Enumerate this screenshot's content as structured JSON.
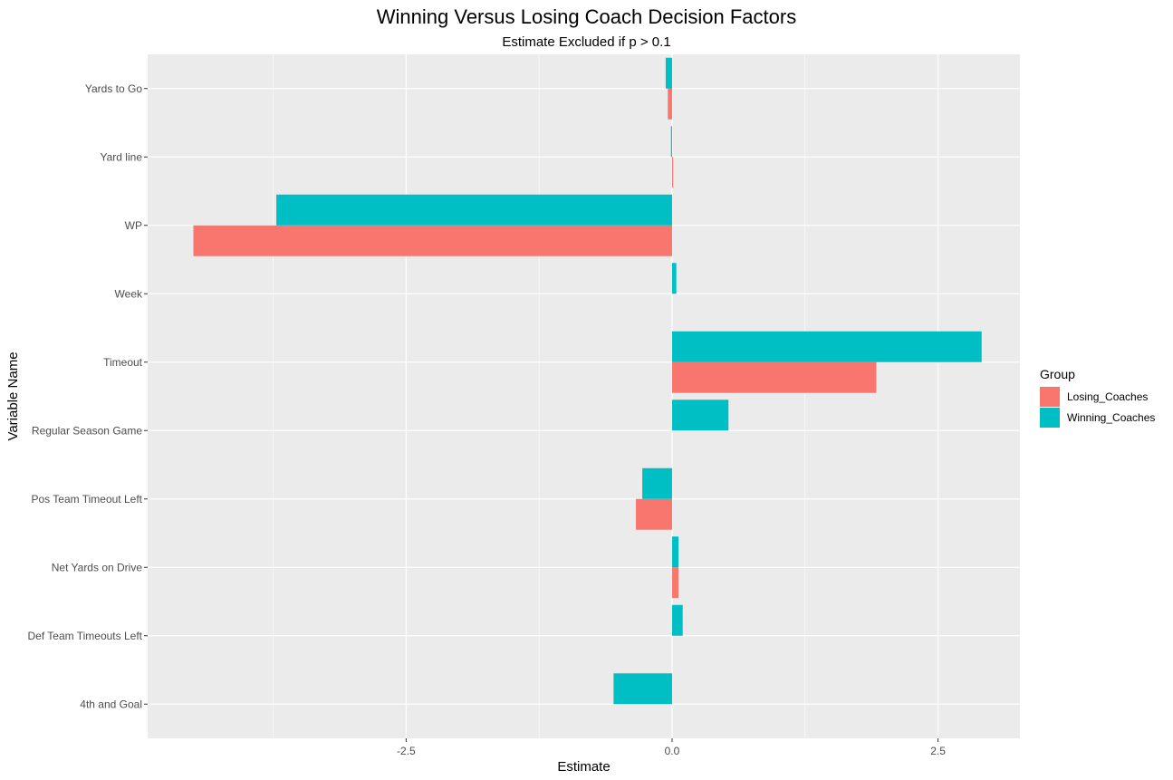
{
  "chart_data": {
    "type": "bar",
    "orientation": "horizontal",
    "title": "Winning Versus Losing Coach Decision Factors",
    "subtitle": "Estimate Excluded if p > 0.1",
    "xlabel": "Estimate",
    "ylabel": "Variable Name",
    "xlim": [
      -4.93,
      3.27
    ],
    "x_ticks": [
      -2.5,
      0.0,
      2.5
    ],
    "x_tick_labels": [
      "-2.5",
      "0.0",
      "2.5"
    ],
    "grid": true,
    "legend_position": "right",
    "legend_title": "Group",
    "categories": [
      "Yards to Go",
      "Yard line",
      "WP",
      "Week",
      "Timeout",
      "Regular Season Game",
      "Pos Team Timeout Left",
      "Net Yards on Drive",
      "Def Team Timeouts Left",
      "4th and Goal"
    ],
    "series": [
      {
        "name": "Losing_Coaches",
        "color": "#F8766D",
        "values": [
          -0.04,
          0.01,
          -4.5,
          null,
          1.92,
          null,
          -0.34,
          0.06,
          null,
          null
        ]
      },
      {
        "name": "Winning_Coaches",
        "color": "#00BFC4",
        "values": [
          -0.06,
          -0.01,
          -3.72,
          0.04,
          2.91,
          0.53,
          -0.28,
          0.06,
          0.1,
          -0.55
        ]
      }
    ]
  }
}
